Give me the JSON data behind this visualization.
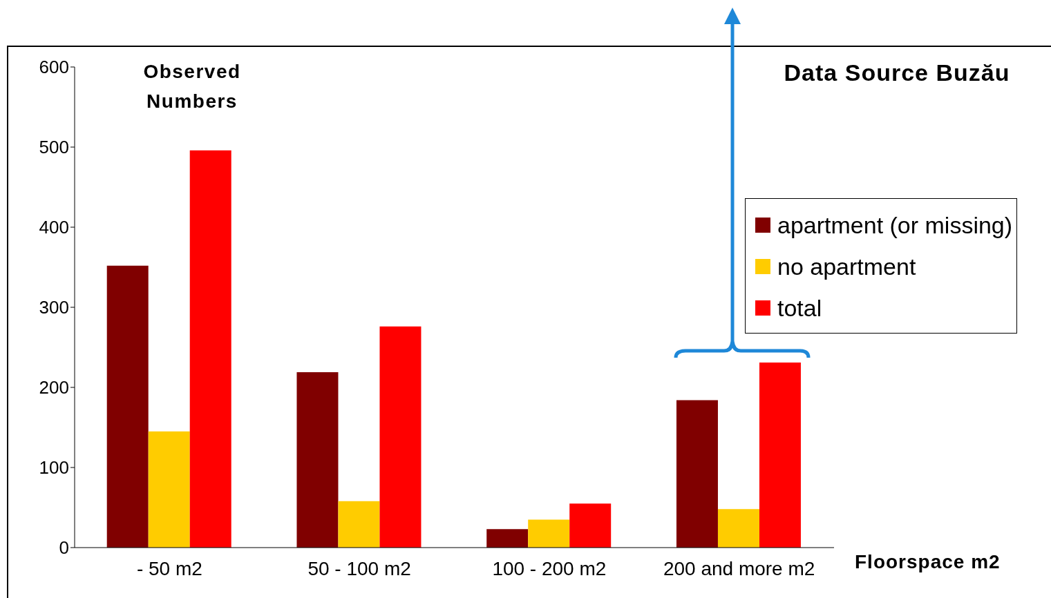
{
  "chart_data": {
    "type": "bar",
    "title": "Observed Numbers",
    "xlabel": "Floorspace m2",
    "annotations": [
      "Data Source Buzău"
    ],
    "categories": [
      "-  50 m2",
      "50 -  100 m2",
      "100 -  200 m2",
      "200 and more m2"
    ],
    "series": [
      {
        "name": "apartment (or missing)",
        "color": "#800000",
        "values": [
          352,
          219,
          23,
          184
        ]
      },
      {
        "name": "no apartment",
        "color": "#ffcc00",
        "values": [
          145,
          58,
          35,
          48
        ]
      },
      {
        "name": "total",
        "color": "#ff0000",
        "values": [
          496,
          276,
          55,
          231
        ]
      }
    ],
    "ylim": [
      0,
      600
    ],
    "yticks": [
      0,
      100,
      200,
      300,
      400,
      500,
      600
    ],
    "grid": false,
    "legend": "right"
  }
}
